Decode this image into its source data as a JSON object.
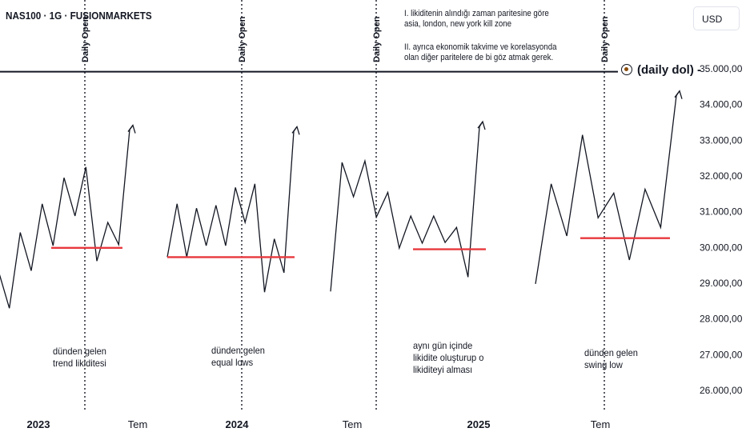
{
  "symbol_header": "NAS100 · 1G · FUSIONMARKETS",
  "currency_button": "USD",
  "notes": {
    "line1": "I. likiditenin alındığı zaman paritesine göre",
    "line2": "asia, london, new york kill zone",
    "line3": "II. ayrıca ekonomik takvime ve korelasyonda",
    "line4": "olan diğer paritelere de bi göz atmak gerek."
  },
  "dol_label": "(daily dol) -",
  "captions": [
    [
      "dünden gelen",
      "trend likiditesi"
    ],
    [
      "dünden gelen",
      "equal lows"
    ],
    [
      "aynı gün içinde",
      "likidite oluşturup o",
      "likiditeyi alması"
    ],
    [
      "dünden gelen",
      "swing low"
    ]
  ],
  "colors": {
    "price_line": "#131722",
    "liquidity_level": "#e8383d",
    "daily_dol_line": "#131722",
    "background": "#ffffff",
    "axis_text": "#131722"
  },
  "chart_data": {
    "type": "line",
    "y_axis": {
      "ticks": [
        35000,
        34000,
        33000,
        32000,
        31000,
        30000,
        29000,
        28000,
        27000,
        26000
      ],
      "tick_labels": [
        "35.000,00",
        "34.000,00",
        "33.000,00",
        "32.000,00",
        "31.000,00",
        "30.000,00",
        "29.000,00",
        "28.000,00",
        "27.000,00",
        "26.000,00"
      ],
      "ylim": [
        25600,
        36750
      ],
      "side": "right"
    },
    "x_axis": {
      "tick_labels": [
        "2023",
        "Tem",
        "2024",
        "Tem",
        "2025",
        "Tem"
      ]
    },
    "grid": false,
    "daily_dol_level": 34920,
    "vertical_markers": [
      {
        "label": "Daily Open"
      },
      {
        "label": "Daily Open"
      },
      {
        "label": "Daily Open"
      },
      {
        "label": "Daily Open"
      }
    ],
    "panels": [
      {
        "name": "",
        "low_level": 29990,
        "prices": [
          29350,
          28300,
          30420,
          29350,
          31220,
          30050,
          31950,
          30880,
          32250,
          29620,
          30700,
          30080,
          33300
        ],
        "arrow_end": 33420
      },
      {
        "name": "",
        "low_level": 29730,
        "prices": [
          29730,
          31220,
          29730,
          31100,
          30050,
          31180,
          30050,
          31680,
          30700,
          31780,
          28750,
          30240,
          29290,
          33250
        ],
        "arrow_end": 33380
      },
      {
        "name": "",
        "low_level": 29950,
        "prices": [
          28770,
          32380,
          31420,
          32420,
          30850,
          31540,
          29980,
          30880,
          30120,
          30880,
          30140,
          30560,
          29170,
          33380
        ],
        "arrow_end": 33520
      },
      {
        "name": "",
        "low_level": 30260,
        "prices": [
          28980,
          31780,
          30320,
          33150,
          30830,
          31520,
          29650,
          31630,
          30560,
          34250
        ],
        "arrow_end": 34380
      }
    ]
  }
}
